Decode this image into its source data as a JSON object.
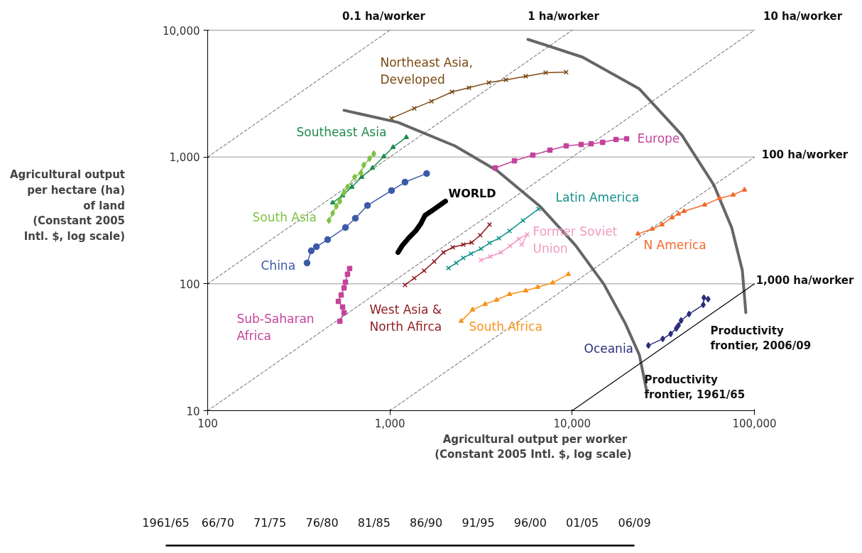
{
  "chart_data": [
    {
      "type": "line",
      "log": "xy",
      "xlabel": "Agricultural output per worker\n(Constant 2005 Intl.  $, log scale)",
      "ylabel": "Agricultural output\nper hectare (ha)\nof land\n(Constant 2005\nIntl. $, log scale)",
      "xlim": [
        100,
        100000
      ],
      "ylim": [
        10,
        10000
      ],
      "xticks": [
        100,
        {
          "value": 1000,
          "label": "1,000"
        },
        {
          "value": 10000,
          "label": "10,000"
        },
        {
          "value": 100000,
          "label": "100,000"
        }
      ],
      "yticks": [
        10,
        100,
        {
          "value": 1000,
          "label": "1,000"
        },
        {
          "value": 10000,
          "label": "10,000"
        }
      ],
      "grid": "y",
      "legend": false,
      "line_style": "solid",
      "series": [
        {
          "name": "Northeast Asia, Developed",
          "color": "#7b4a12",
          "marker": "cross",
          "x": [
            1020,
            1360,
            1690,
            2190,
            2715,
            3490,
            4330,
            5560,
            7150,
            9270
          ],
          "values": [
            2020,
            2420,
            2750,
            3260,
            3520,
            3860,
            4060,
            4330,
            4620,
            4670
          ]
        },
        {
          "name": "Southeast Asia",
          "color": "#1f8c4e",
          "marker": "triangle",
          "x": [
            485,
            550,
            618,
            700,
            802,
            925,
            1040,
            1230
          ],
          "values": [
            436,
            497,
            580,
            695,
            820,
            1009,
            1194,
            1430
          ]
        },
        {
          "name": "Europe",
          "color": "#c4449b",
          "marker": "square",
          "x": [
            3790,
            4820,
            6080,
            7550,
            9270,
            11200,
            12700,
            14700,
            17400,
            19900
          ],
          "values": [
            820,
            933,
            1035,
            1133,
            1224,
            1256,
            1273,
            1306,
            1375,
            1392
          ]
        },
        {
          "name": "South Asia",
          "color": "#7dc242",
          "marker": "diamond",
          "x": [
            463,
            485,
            508,
            531,
            560,
            585,
            640,
            693,
            719,
            773,
            816
          ],
          "values": [
            316,
            360,
            409,
            448,
            523,
            580,
            695,
            750,
            864,
            971,
            1062
          ]
        },
        {
          "name": "China",
          "color": "#3c5aa8",
          "marker": "circle",
          "x": [
            351,
            370,
            395,
            455,
            570,
            646,
            753,
            1020,
            1210,
            1590
          ],
          "values": [
            146,
            182,
            196,
            223,
            278,
            329,
            415,
            544,
            634,
            741
          ]
        },
        {
          "name": "WORLD",
          "color": "#000000",
          "x": [
            1107,
            1170,
            1265,
            1383,
            1475,
            1557,
            1733,
            2018
          ],
          "values": [
            177,
            201,
            229,
            261,
            297,
            346,
            384,
            448
          ]
        },
        {
          "name": "Latin America",
          "color": "#14918a",
          "marker": "cross",
          "x": [
            2095,
            2310,
            2525,
            2785,
            3160,
            3520,
            3960,
            4530,
            5370,
            6540
          ],
          "values": [
            133,
            146,
            160,
            173,
            189,
            210,
            229,
            261,
            316,
            389
          ]
        },
        {
          "name": "Former Soviet Union",
          "color": "#f29ac2",
          "marker": "cross",
          "x": [
            3160,
            3550,
            4060,
            4570,
            5090,
            5660,
            5280
          ],
          "values": [
            154,
            164,
            177,
            199,
            226,
            245,
            204
          ]
        },
        {
          "name": "N America",
          "color": "#f26b2f",
          "marker": "triangle",
          "x": [
            22960,
            27500,
            31100,
            35300,
            38300,
            41100,
            53300,
            64400,
            76400,
            88200
          ],
          "values": [
            248,
            271,
            293,
            333,
            356,
            374,
            420,
            472,
            503,
            551
          ]
        },
        {
          "name": "West Asia & North Afirca",
          "color": "#8e1b1f",
          "marker": "cross",
          "x": [
            1210,
            1360,
            1540,
            1750,
            1965,
            2210,
            2525,
            2810,
            3130,
            3520
          ],
          "values": [
            98,
            111,
            127,
            150,
            177,
            194,
            204,
            212,
            242,
            293
          ]
        },
        {
          "name": "Sub-Saharan Africa",
          "color": "#c4449b",
          "marker": "square",
          "x": [
            601,
            585,
            570,
            560,
            540,
            521,
            550,
            560,
            531
          ],
          "values": [
            132,
            119,
            103,
            93,
            81.8,
            72.8,
            65.7,
            59.3,
            50.8
          ]
        },
        {
          "name": "South Africa",
          "color": "#f7941d",
          "marker": "triangle",
          "x": [
            2460,
            2840,
            3330,
            3850,
            4530,
            5560,
            6470,
            7820,
            9530
          ],
          "values": [
            50.8,
            62.4,
            69.2,
            74.7,
            82.8,
            88.3,
            94.2,
            102,
            119
          ]
        },
        {
          "name": "Oceania",
          "color": "#2b2d7d",
          "marker": "diamond",
          "x": [
            26200,
            31400,
            34700,
            37300,
            38300,
            39600,
            43800,
            52400,
            52800,
            55700
          ],
          "values": [
            32.7,
            36.8,
            40.3,
            44.6,
            47.0,
            51.4,
            57.8,
            68.3,
            77.7,
            75.7
          ]
        },
        {
          "name": "Productivity frontier, 1961/65",
          "color": "#666666",
          "x": [
            560,
            1107,
            2270,
            3880,
            6650,
            10430,
            14930,
            19540,
            23390,
            25600
          ],
          "values": [
            2334,
            1875,
            1224,
            780,
            409,
            201,
            99.3,
            48.9,
            27.4,
            14.4
          ]
        },
        {
          "name": "Productivity frontier, 2006/09",
          "color": "#666666",
          "x": [
            5720,
            11400,
            23390,
            40000,
            59900,
            75000,
            85800,
            89700
          ],
          "values": [
            8460,
            6130,
            3440,
            1487,
            602,
            278,
            128,
            59.3
          ]
        },
        {
          "name": "0.1 ha/worker",
          "color": "#555555",
          "line_style": "dashed",
          "x": [
            100,
            1000
          ],
          "values": [
            1000,
            10000
          ]
        },
        {
          "name": "1 ha/worker",
          "color": "#555555",
          "line_style": "dashed",
          "x": [
            100,
            10000
          ],
          "values": [
            100,
            10000
          ]
        },
        {
          "name": "10 ha/worker",
          "color": "#555555",
          "line_style": "dashed",
          "x": [
            100,
            100000
          ],
          "values": [
            10,
            10000
          ]
        },
        {
          "name": "100 ha/worker",
          "color": "#555555",
          "line_style": "dashed",
          "x": [
            1000,
            100000
          ],
          "values": [
            10,
            1000
          ]
        },
        {
          "name": "1,000 ha/worker",
          "color": "#000000",
          "line_style": "solid",
          "x": [
            10000,
            100000
          ],
          "values": [
            10,
            100
          ]
        }
      ]
    },
    {
      "type": "other",
      "categories": [
        "1961/65",
        "66/70",
        "71/75",
        "76/80",
        "81/85",
        "86/90",
        "91/95",
        "96/00",
        "01/05",
        "06/09"
      ]
    }
  ]
}
